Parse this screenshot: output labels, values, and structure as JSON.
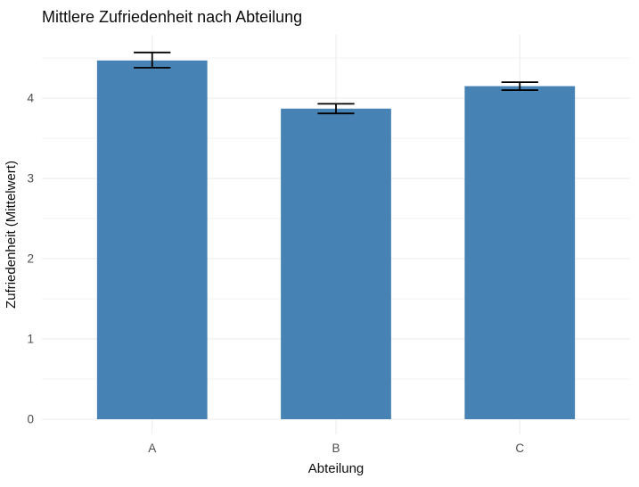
{
  "chart_data": {
    "type": "bar",
    "title": "Mittlere Zufriedenheit nach Abteilung",
    "xlabel": "Abteilung",
    "ylabel": "Zufriedenheit (Mittelwert)",
    "categories": [
      "A",
      "B",
      "C"
    ],
    "values": [
      4.47,
      3.87,
      4.15
    ],
    "error_bars": [
      {
        "category": "A",
        "lower": 4.38,
        "upper": 4.57
      },
      {
        "category": "B",
        "lower": 3.81,
        "upper": 3.93
      },
      {
        "category": "C",
        "lower": 4.1,
        "upper": 4.2
      }
    ],
    "yticks": [
      0,
      1,
      2,
      3,
      4
    ],
    "minor_yticks": [
      0.5,
      1.5,
      2.5,
      3.5,
      4.5
    ],
    "ylim": [
      0,
      4.79
    ],
    "grid": true,
    "legend": false,
    "style": {
      "bar_color": "#4682B4",
      "error_bar_color": "#000000",
      "grid_major_color": "#EBEBEB",
      "grid_minor_color": "#F3F3F3",
      "tick_label_color": "#4D4D4D",
      "title_color": "#0D0D0D",
      "axis_title_color": "#0D0D0D",
      "background": "#FFFFFF"
    }
  }
}
